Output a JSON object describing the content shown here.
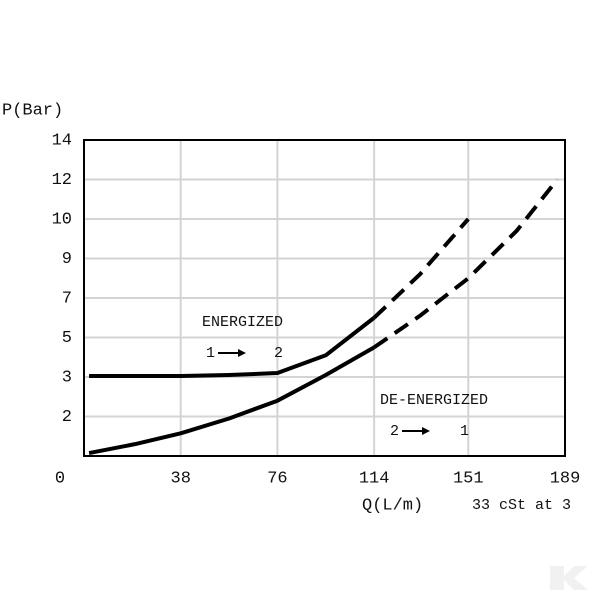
{
  "chart_data": {
    "type": "line",
    "y_label": "P(Bar)",
    "x_label": "Q(L/m)",
    "note": "33 cSt at 3",
    "x": [
      2,
      20,
      38,
      57,
      76,
      95,
      114,
      132,
      151,
      170,
      186
    ],
    "series": [
      {
        "color": "#000000",
        "style": "solid",
        "values": [
          3.05,
          3.05,
          3.05,
          3.1,
          3.2,
          4.1,
          6.0,
          null,
          null,
          null,
          null
        ]
      },
      {
        "color": "#000000",
        "style": "dashed",
        "values": [
          null,
          null,
          null,
          null,
          null,
          null,
          6.0,
          8.2,
          10,
          null,
          null
        ]
      },
      {
        "color": "#000000",
        "style": "solid",
        "values": [
          0.15,
          0.6,
          1.15,
          1.9,
          2.4,
          3.1,
          4.5,
          null,
          null,
          null,
          null
        ]
      },
      {
        "color": "#000000",
        "style": "dashed",
        "values": [
          null,
          null,
          null,
          null,
          null,
          null,
          4.5,
          6.1,
          8.0,
          9.7,
          12
        ]
      }
    ],
    "annotations": [
      {
        "text": "ENERGIZED",
        "from": "1",
        "to": "2"
      },
      {
        "text": "DE-ENERGIZED",
        "from": "2",
        "to": "1"
      }
    ],
    "xlim": [
      0,
      189
    ],
    "xticks": [
      0,
      38,
      76,
      114,
      151,
      189
    ],
    "ylim": [
      0,
      14
    ],
    "yticks": [
      2,
      3,
      5,
      7,
      9,
      10,
      12,
      14
    ],
    "yscale": "even-ticks",
    "grid": true
  }
}
